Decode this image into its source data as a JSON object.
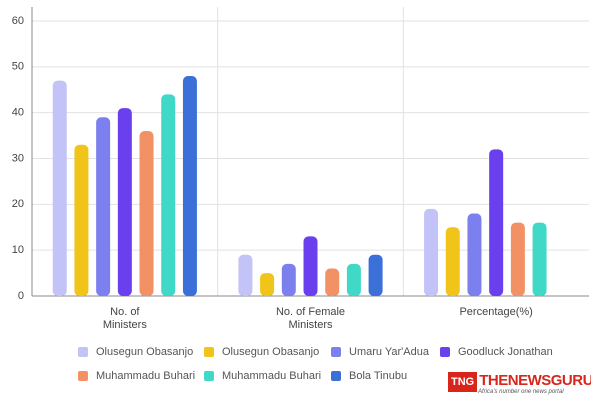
{
  "chart_data": {
    "type": "bar",
    "categories": [
      "No. of\nMinisters",
      "No. of Female\nMinisters",
      "Percentage(%)"
    ],
    "series": [
      {
        "name": "Olusegun Obasanjo",
        "color": "#c3c3f7",
        "values": [
          47,
          9,
          19
        ]
      },
      {
        "name": "Olusegun Obasanjo",
        "color": "#f0c419",
        "values": [
          33,
          5,
          15
        ]
      },
      {
        "name": "Umaru Yar'Adua",
        "color": "#7c80ef",
        "values": [
          39,
          7,
          18
        ]
      },
      {
        "name": "Goodluck Jonathan",
        "color": "#6a40ee",
        "values": [
          41,
          13,
          32
        ]
      },
      {
        "name": "Muhammadu Buhari",
        "color": "#f29264",
        "values": [
          36,
          6,
          16
        ]
      },
      {
        "name": "Muhammadu Buhari",
        "color": "#40d8c6",
        "values": [
          44,
          7,
          16
        ]
      },
      {
        "name": "Bola Tinubu",
        "color": "#3b70d9",
        "values": [
          48,
          9,
          null
        ]
      }
    ],
    "ylim": [
      0,
      60
    ],
    "yticks": [
      0,
      10,
      20,
      30,
      40,
      50,
      60
    ],
    "grid": true
  },
  "watermark": {
    "mark": "TNG",
    "name": "THENEWSGURU",
    "tagline": "Africa's number one news portal"
  }
}
